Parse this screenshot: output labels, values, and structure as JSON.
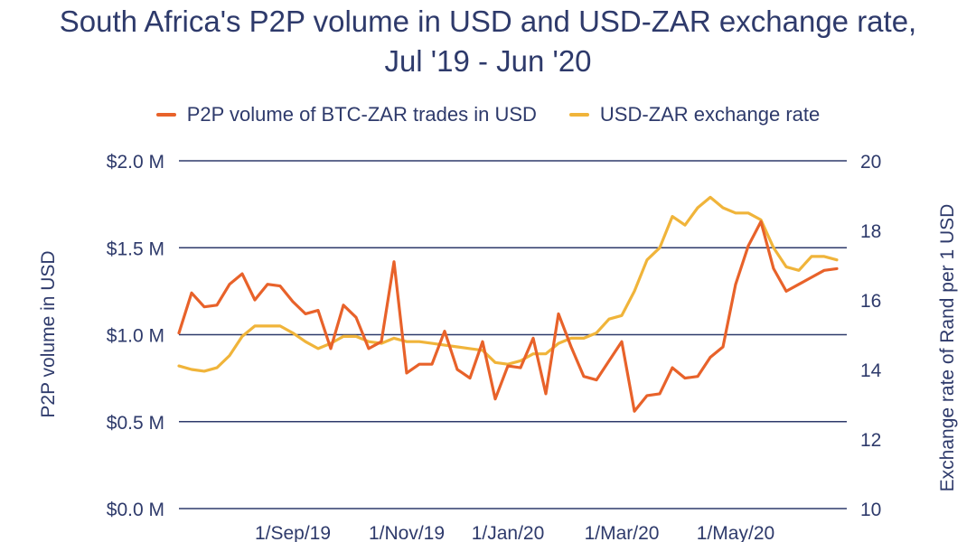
{
  "chart_data": {
    "type": "line",
    "title": "South Africa's P2P volume in USD and USD-ZAR exchange rate,",
    "subtitle": "Jul '19 - Jun '20",
    "ylabel_left": "P2P volume in USD",
    "ylabel_right": "Exchange rate of Rand per 1 USD",
    "ylim_left": [
      0,
      2000000
    ],
    "ylim_right": [
      10,
      20
    ],
    "left_ticks": [
      {
        "value": 0,
        "label": "$0.0 M"
      },
      {
        "value": 500000,
        "label": "$0.5 M"
      },
      {
        "value": 1000000,
        "label": "$1.0 M"
      },
      {
        "value": 1500000,
        "label": "$1.5 M"
      },
      {
        "value": 2000000,
        "label": "$2.0 M"
      }
    ],
    "right_ticks": [
      {
        "value": 10,
        "label": "10"
      },
      {
        "value": 12,
        "label": "12"
      },
      {
        "value": 14,
        "label": "14"
      },
      {
        "value": 16,
        "label": "16"
      },
      {
        "value": 18,
        "label": "18"
      },
      {
        "value": 20,
        "label": "20"
      }
    ],
    "x_ticks": [
      {
        "week": 9,
        "label": "1/Sep/19"
      },
      {
        "week": 18,
        "label": "1/Nov/19"
      },
      {
        "week": 26,
        "label": "1/Jan/20"
      },
      {
        "week": 35,
        "label": "1/Mar/20"
      },
      {
        "week": 44,
        "label": "1/May/20"
      }
    ],
    "grid": true,
    "legend_position": "top-center",
    "series": [
      {
        "name": "P2P volume of BTC-ZAR trades in USD",
        "axis": "left",
        "color": "#e8622a",
        "x": [
          0,
          1,
          2,
          3,
          4,
          5,
          6,
          7,
          8,
          9,
          10,
          11,
          12,
          13,
          14,
          15,
          16,
          17,
          18,
          19,
          20,
          21,
          22,
          23,
          24,
          25,
          26,
          27,
          28,
          29,
          30,
          31,
          32,
          33,
          34,
          35,
          36,
          37,
          38,
          39,
          40,
          41,
          42,
          43,
          44,
          45,
          46,
          47,
          48,
          49,
          50,
          51,
          52
        ],
        "values": [
          1010000,
          1240000,
          1160000,
          1170000,
          1290000,
          1350000,
          1200000,
          1290000,
          1280000,
          1190000,
          1120000,
          1140000,
          920000,
          1170000,
          1100000,
          920000,
          960000,
          1420000,
          780000,
          830000,
          830000,
          1020000,
          800000,
          750000,
          960000,
          630000,
          820000,
          810000,
          980000,
          660000,
          1120000,
          930000,
          760000,
          740000,
          850000,
          960000,
          560000,
          650000,
          660000,
          810000,
          750000,
          760000,
          870000,
          930000,
          1290000,
          1510000,
          1650000,
          1380000,
          1250000,
          1290000,
          1330000,
          1370000,
          1380000
        ]
      },
      {
        "name": "USD-ZAR exchange rate",
        "axis": "right",
        "color": "#f0b43a",
        "x": [
          0,
          1,
          2,
          3,
          4,
          5,
          6,
          7,
          8,
          9,
          10,
          11,
          12,
          13,
          14,
          15,
          16,
          17,
          18,
          19,
          20,
          21,
          22,
          23,
          24,
          25,
          26,
          27,
          28,
          29,
          30,
          31,
          32,
          33,
          34,
          35,
          36,
          37,
          38,
          39,
          40,
          41,
          42,
          43,
          44,
          45,
          46,
          47,
          48,
          49,
          50,
          51,
          52
        ],
        "values": [
          14.1,
          14.0,
          13.95,
          14.05,
          14.4,
          14.95,
          15.25,
          15.25,
          15.25,
          15.05,
          14.8,
          14.6,
          14.75,
          14.95,
          14.95,
          14.8,
          14.75,
          14.9,
          14.8,
          14.8,
          14.75,
          14.7,
          14.65,
          14.6,
          14.55,
          14.2,
          14.15,
          14.25,
          14.45,
          14.45,
          14.75,
          14.9,
          14.9,
          15.05,
          15.45,
          15.55,
          16.25,
          17.15,
          17.5,
          18.4,
          18.15,
          18.65,
          18.95,
          18.65,
          18.5,
          18.5,
          18.3,
          17.5,
          16.95,
          16.85,
          17.25,
          17.25,
          17.15
        ]
      }
    ]
  }
}
